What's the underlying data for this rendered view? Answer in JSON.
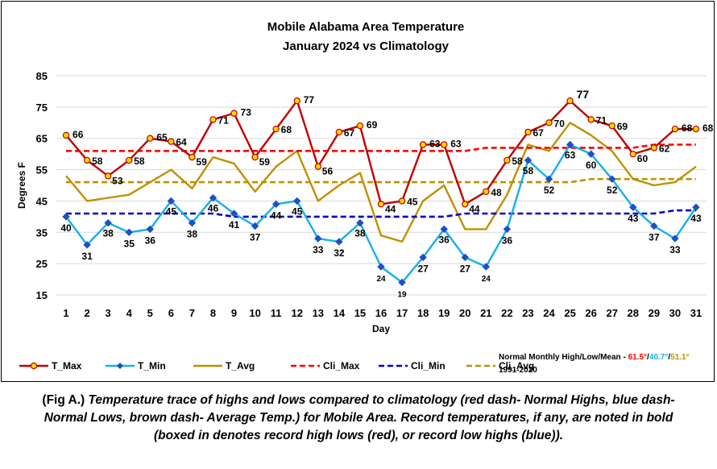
{
  "chart_data": {
    "type": "line",
    "title_line1": "Mobile Alabama Area Temperature",
    "title_line2": "January 2024 vs Climatology",
    "xlabel": "Day",
    "ylabel": "Degrees F",
    "ylim": [
      15,
      85
    ],
    "yticks": [
      15,
      25,
      35,
      45,
      55,
      65,
      75,
      85
    ],
    "grid": true,
    "x": [
      1,
      2,
      3,
      4,
      5,
      6,
      7,
      8,
      9,
      10,
      11,
      12,
      13,
      14,
      15,
      16,
      17,
      18,
      19,
      20,
      21,
      22,
      23,
      24,
      25,
      26,
      27,
      28,
      29,
      30,
      31
    ],
    "series": [
      {
        "name": "T_Max",
        "color": "#c00000",
        "marker": "gold-circle",
        "values": [
          66,
          58,
          53,
          58,
          65,
          64,
          59,
          71,
          73,
          59,
          68,
          77,
          56,
          67,
          69,
          44,
          45,
          63,
          63,
          44,
          48,
          58,
          67,
          70,
          77,
          71,
          69,
          60,
          62,
          68,
          68
        ]
      },
      {
        "name": "T_Min",
        "color": "#16b0e8",
        "marker": "blue-diamond",
        "values": [
          40,
          31,
          38,
          35,
          36,
          45,
          38,
          46,
          41,
          37,
          44,
          45,
          33,
          32,
          38,
          24,
          19,
          27,
          36,
          27,
          24,
          36,
          58,
          52,
          63,
          60,
          52,
          43,
          37,
          33,
          43
        ]
      },
      {
        "name": "T_Avg",
        "color": "#bf9000",
        "marker": "none",
        "values": [
          53,
          45,
          46,
          47,
          51,
          55,
          49,
          59,
          57,
          48,
          56,
          61,
          45,
          50,
          54,
          34,
          32,
          45,
          50,
          36,
          36,
          47,
          63,
          61,
          70,
          66,
          61,
          52,
          50,
          51,
          56
        ]
      },
      {
        "name": "Cli_Max",
        "color": "#ff0000",
        "dashed": true,
        "values": [
          61,
          61,
          61,
          61,
          61,
          61,
          61,
          61,
          61,
          61,
          61,
          61,
          61,
          61,
          61,
          61,
          61,
          61,
          61,
          61,
          62,
          62,
          62,
          62,
          62,
          62,
          62,
          62,
          63,
          63,
          63
        ]
      },
      {
        "name": "Cli_Min",
        "color": "#0000cc",
        "dashed": true,
        "values": [
          41,
          41,
          41,
          41,
          41,
          41,
          41,
          41,
          40,
          40,
          40,
          40,
          40,
          40,
          40,
          40,
          40,
          40,
          40,
          41,
          41,
          41,
          41,
          41,
          41,
          41,
          41,
          41,
          41,
          42,
          42
        ]
      },
      {
        "name": "Cli_Avg",
        "color": "#bf9000",
        "dashed": true,
        "values": [
          51,
          51,
          51,
          51,
          51,
          51,
          51,
          51,
          51,
          51,
          51,
          51,
          51,
          51,
          51,
          51,
          51,
          51,
          51,
          51,
          51,
          51,
          51,
          51,
          51,
          52,
          52,
          52,
          52,
          52,
          52
        ]
      }
    ],
    "legend_position": "bottom",
    "record_day": 25,
    "record_color": "#ff0000",
    "normals_note": {
      "prefix": "Normal Monthly High/Low/Mean - ",
      "high": "61.5°",
      "sep1": "/",
      "low": "40.7°",
      "sep2": "/",
      "mean": "51.1°",
      "high_color": "#ff0000",
      "low_color": "#16b0e8",
      "mean_color": "#bf9000",
      "period": "1991-2020"
    }
  },
  "caption": {
    "prefix": "(Fig A.) ",
    "body": "Temperature trace of highs and lows compared to climatology (red dash- Normal Highs, blue dash- Normal Lows, brown dash- Average Temp.) for Mobile Area. Record temperatures, if any, are noted in bold (boxed in denotes record high lows (red), or record low highs (blue))."
  }
}
